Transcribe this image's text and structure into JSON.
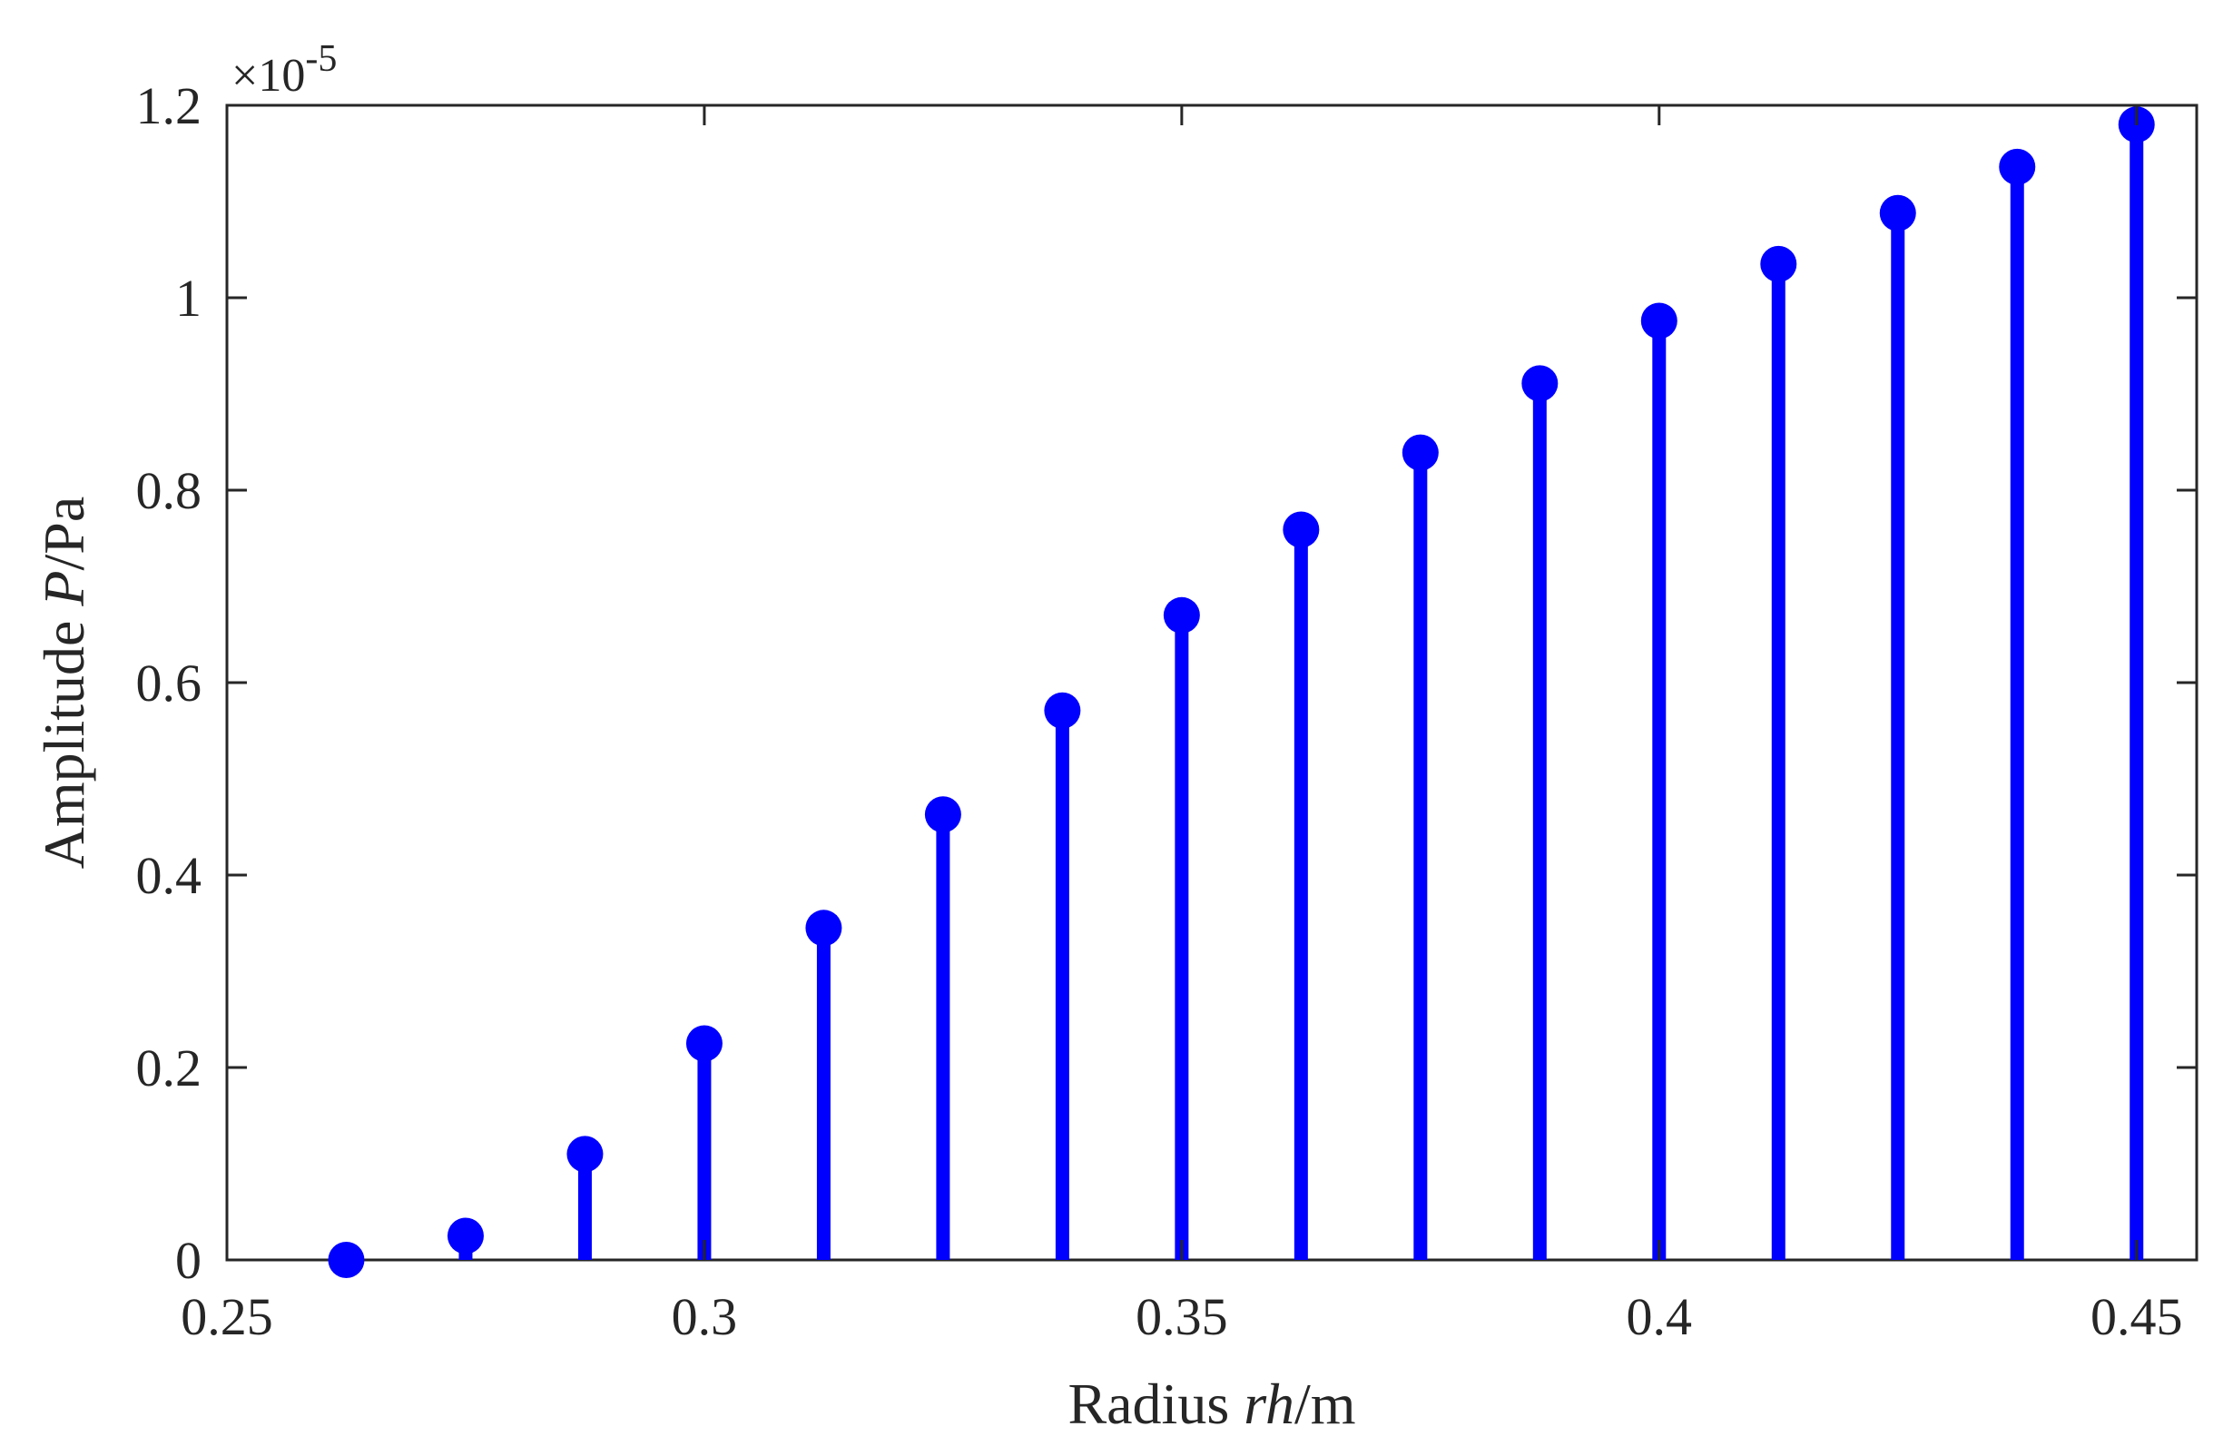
{
  "chart_data": {
    "type": "stem",
    "xlabel": {
      "prefix": "Radius ",
      "italic": "rh",
      "suffix": "/m"
    },
    "ylabel": {
      "prefix": "Amplitude ",
      "italic": "P",
      "suffix": "/Pa"
    },
    "y_exponent": {
      "base": "×10",
      "power": "-5"
    },
    "xlim": [
      0.25,
      0.4563
    ],
    "ylim": [
      0,
      1.2
    ],
    "x_ticks": [
      0.25,
      0.3,
      0.35,
      0.4,
      0.45
    ],
    "x_tick_labels": [
      "0.25",
      "0.3",
      "0.35",
      "0.4",
      "0.45"
    ],
    "y_ticks": [
      0,
      0.2,
      0.4,
      0.6,
      0.8,
      1.0,
      1.2
    ],
    "y_tick_labels": [
      "0",
      "0.2",
      "0.4",
      "0.6",
      "0.8",
      "1",
      "1.2"
    ],
    "color": "#0000ff",
    "grid": false,
    "x": [
      0.2625,
      0.275,
      0.2875,
      0.3,
      0.3125,
      0.325,
      0.3375,
      0.35,
      0.3625,
      0.375,
      0.3875,
      0.4,
      0.4125,
      0.425,
      0.4375,
      0.45
    ],
    "values": [
      0.0,
      0.025,
      0.11,
      0.225,
      0.345,
      0.463,
      0.571,
      0.67,
      0.759,
      0.839,
      0.911,
      0.976,
      1.035,
      1.088,
      1.136,
      1.18
    ]
  }
}
